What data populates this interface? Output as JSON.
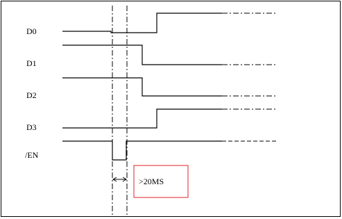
{
  "signals": [
    {
      "label": "D0"
    },
    {
      "label": "D1"
    },
    {
      "label": "D2"
    },
    {
      "label": "D3"
    },
    {
      "label": "/EN"
    }
  ],
  "annotation": ">20MS"
}
